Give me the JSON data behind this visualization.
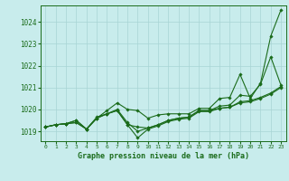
{
  "title": "Graphe pression niveau de la mer (hPa)",
  "background_color": "#c8ecec",
  "line_color": "#1a6b1a",
  "grid_color": "#a8d4d4",
  "text_color": "#1a6b1a",
  "xlim": [
    -0.5,
    23.5
  ],
  "ylim": [
    1018.55,
    1024.75
  ],
  "yticks": [
    1019,
    1020,
    1021,
    1022,
    1023,
    1024
  ],
  "xticks": [
    0,
    1,
    2,
    3,
    4,
    5,
    6,
    7,
    8,
    9,
    10,
    11,
    12,
    13,
    14,
    15,
    16,
    17,
    18,
    19,
    20,
    21,
    22,
    23
  ],
  "lines": [
    [
      1019.2,
      1019.3,
      1019.35,
      1019.4,
      1019.1,
      1019.6,
      1019.95,
      1020.3,
      1020.0,
      1019.95,
      1019.6,
      1019.75,
      1019.8,
      1019.8,
      1019.8,
      1020.05,
      1020.05,
      1020.5,
      1020.55,
      1021.6,
      1020.5,
      1021.2,
      1023.35,
      1024.55
    ],
    [
      1019.2,
      1019.3,
      1019.35,
      1019.4,
      1019.1,
      1019.6,
      1019.8,
      1020.0,
      1019.4,
      1019.0,
      1019.15,
      1019.3,
      1019.5,
      1019.6,
      1019.65,
      1019.95,
      1019.95,
      1020.15,
      1020.2,
      1020.65,
      1020.6,
      1021.15,
      1022.4,
      1021.1
    ],
    [
      1019.2,
      1019.3,
      1019.35,
      1019.5,
      1019.1,
      1019.65,
      1019.8,
      1019.95,
      1019.3,
      1019.2,
      1019.15,
      1019.3,
      1019.5,
      1019.6,
      1019.65,
      1019.95,
      1019.95,
      1020.05,
      1020.1,
      1020.35,
      1020.4,
      1020.55,
      1020.75,
      1021.05
    ],
    [
      1019.2,
      1019.3,
      1019.35,
      1019.5,
      1019.1,
      1019.6,
      1019.8,
      1019.95,
      1019.3,
      1018.7,
      1019.1,
      1019.25,
      1019.45,
      1019.55,
      1019.6,
      1019.9,
      1019.9,
      1020.05,
      1020.1,
      1020.3,
      1020.35,
      1020.5,
      1020.7,
      1021.0
    ]
  ]
}
